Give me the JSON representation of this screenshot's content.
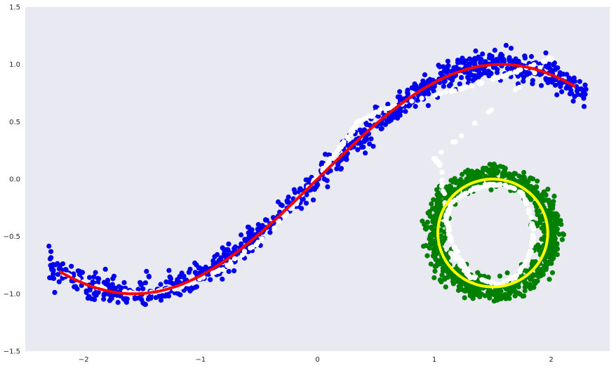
{
  "chart_data": {
    "type": "scatter",
    "title": "",
    "xlabel": "",
    "ylabel": "",
    "xlim": [
      -2.5,
      2.5
    ],
    "ylim": [
      -1.5,
      1.5
    ],
    "grid": false,
    "background": "#e9e9f1",
    "x_ticks": [
      -2,
      -1,
      0,
      1,
      2
    ],
    "x_tick_labels": [
      "−2",
      "−1",
      "0",
      "1",
      "2"
    ],
    "y_ticks": [
      -1.5,
      -1.0,
      -0.5,
      0.0,
      0.5,
      1.0,
      1.5
    ],
    "y_tick_labels": [
      "−1.5",
      "−1.0",
      "−0.5",
      "0.0",
      "0.5",
      "1.0",
      "1.5"
    ],
    "series": [
      {
        "kind": "scatter",
        "color": "#0000ee",
        "curve": "sine",
        "x_range": [
          -2.3,
          2.3
        ],
        "noise_sd": 0.06,
        "n_points": 900,
        "sample_points": [
          [
            -2.2,
            -0.81
          ],
          [
            -2.0,
            -0.91
          ],
          [
            -1.6,
            -1.0
          ],
          [
            -1.2,
            -0.93
          ],
          [
            -0.8,
            -0.72
          ],
          [
            -0.4,
            -0.39
          ],
          [
            0.0,
            0.0
          ],
          [
            0.4,
            0.39
          ],
          [
            0.8,
            0.72
          ],
          [
            1.2,
            0.93
          ],
          [
            1.6,
            1.0
          ],
          [
            2.0,
            0.91
          ],
          [
            2.2,
            0.81
          ]
        ]
      },
      {
        "kind": "scatter",
        "color": "#008000",
        "curve": "circle",
        "center": [
          1.5,
          -0.47
        ],
        "radius": 0.5,
        "noise_sd": 0.05,
        "n_points": 900
      },
      {
        "kind": "scatter",
        "color": "#ffffff",
        "curve": "path",
        "noise_sd": 0.004,
        "n_points": 430,
        "path": [
          [
            -2.25,
            -0.8
          ],
          [
            -1.8,
            -0.97
          ],
          [
            -1.5,
            -1.0
          ],
          [
            -1.2,
            -0.95
          ],
          [
            -0.8,
            -0.78
          ],
          [
            -0.4,
            -0.47
          ],
          [
            0.0,
            0.02
          ],
          [
            0.15,
            0.22
          ],
          [
            0.25,
            0.35
          ],
          [
            0.35,
            0.5
          ],
          [
            0.55,
            0.6
          ],
          [
            0.8,
            0.68
          ],
          [
            1.2,
            0.78
          ],
          [
            1.6,
            0.9
          ],
          [
            2.0,
            1.05
          ],
          [
            2.0,
            1.05
          ],
          [
            1.0,
            0.18
          ],
          [
            1.05,
            0.12
          ],
          [
            1.1,
            -0.3
          ],
          [
            1.15,
            -0.65
          ],
          [
            1.3,
            -0.85
          ],
          [
            1.55,
            -0.92
          ],
          [
            1.7,
            -0.85
          ],
          [
            1.8,
            -0.7
          ],
          [
            1.85,
            -0.5
          ],
          [
            1.82,
            -0.3
          ],
          [
            1.75,
            -0.12
          ],
          [
            1.6,
            -0.05
          ],
          [
            1.45,
            -0.05
          ],
          [
            1.3,
            -0.1
          ],
          [
            1.15,
            -0.2
          ],
          [
            1.1,
            -0.35
          ],
          [
            1.15,
            -0.55
          ],
          [
            1.25,
            -0.75
          ],
          [
            1.3,
            -0.85
          ]
        ]
      },
      {
        "kind": "line",
        "color": "#ff0000",
        "curve": "sine",
        "x_range": [
          -2.2,
          2.2
        ],
        "line_width": 4
      },
      {
        "kind": "line",
        "color": "#ffff00",
        "curve": "circle",
        "center": [
          1.5,
          -0.47
        ],
        "radius": 0.47,
        "line_width": 4
      }
    ]
  }
}
